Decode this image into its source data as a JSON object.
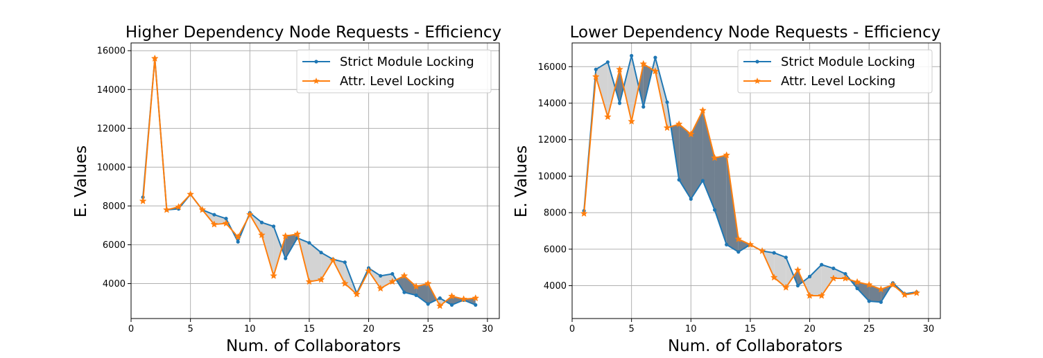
{
  "colors": {
    "series1": "#1f77b4",
    "series2": "#ff7f0e",
    "fill_series2_lower": "#d3d3d3",
    "fill_series2_higher": "#708090",
    "grid": "#b0b0b0"
  },
  "chart_data": [
    {
      "type": "line",
      "title": "Higher Dependency Node Requests - Efficiency",
      "xlabel": "Num. of Collaborators",
      "ylabel": "E. Values",
      "xlim": [
        0,
        31
      ],
      "ylim": [
        2200,
        16400
      ],
      "xticks": [
        0,
        5,
        10,
        15,
        20,
        25,
        30
      ],
      "yticks": [
        4000,
        6000,
        8000,
        10000,
        12000,
        14000,
        16000
      ],
      "grid": true,
      "legend_position": "top-right",
      "x": [
        1,
        2,
        3,
        4,
        5,
        6,
        7,
        8,
        9,
        10,
        11,
        12,
        13,
        14,
        15,
        16,
        17,
        18,
        19,
        20,
        21,
        22,
        23,
        24,
        25,
        26,
        27,
        28,
        29
      ],
      "series": [
        {
          "name": "Strict Module Locking",
          "marker": "dot",
          "values": [
            8450,
            15600,
            7800,
            7850,
            8600,
            7800,
            7550,
            7350,
            6150,
            7650,
            7150,
            6950,
            5300,
            6350,
            6100,
            5600,
            5250,
            5100,
            3500,
            4800,
            4400,
            4500,
            3550,
            3400,
            2950,
            3250,
            2900,
            3150,
            2900
          ]
        },
        {
          "name": "Attr. Level Locking",
          "marker": "star",
          "values": [
            8250,
            15600,
            7800,
            7950,
            8600,
            7800,
            7050,
            7100,
            6400,
            7550,
            6500,
            4400,
            6450,
            6550,
            4100,
            4200,
            5200,
            4000,
            3450,
            4650,
            3750,
            4100,
            4400,
            3850,
            4000,
            2850,
            3350,
            3200,
            3250
          ]
        }
      ]
    },
    {
      "type": "line",
      "title": "Lower Dependency Node Requests - Efficiency",
      "xlabel": "Num. of Collaborators",
      "ylabel": "E. Values",
      "xlim": [
        0,
        31
      ],
      "ylim": [
        2200,
        17300
      ],
      "xticks": [
        0,
        5,
        10,
        15,
        20,
        25,
        30
      ],
      "yticks": [
        4000,
        6000,
        8000,
        10000,
        12000,
        14000,
        16000
      ],
      "grid": true,
      "legend_position": "top-right",
      "x": [
        1,
        2,
        3,
        4,
        5,
        6,
        7,
        8,
        9,
        10,
        11,
        12,
        13,
        14,
        15,
        16,
        17,
        18,
        19,
        20,
        21,
        22,
        23,
        24,
        25,
        26,
        27,
        28,
        29
      ],
      "series": [
        {
          "name": "Strict Module Locking",
          "marker": "dot",
          "values": [
            8100,
            15850,
            16250,
            14000,
            16600,
            13800,
            16500,
            14050,
            9800,
            8750,
            9750,
            8150,
            6250,
            5850,
            6250,
            5900,
            5800,
            5550,
            4000,
            4500,
            5150,
            4950,
            4650,
            3850,
            3150,
            3100,
            4150,
            3550,
            3650
          ]
        },
        {
          "name": "Attr. Level Locking",
          "marker": "star",
          "values": [
            7950,
            15450,
            13250,
            15850,
            13000,
            16150,
            15750,
            12650,
            12850,
            12300,
            13600,
            11000,
            11150,
            6550,
            6250,
            5900,
            4450,
            3900,
            4850,
            3450,
            3450,
            4400,
            4400,
            4200,
            4050,
            3800,
            4050,
            3500,
            3600
          ]
        }
      ]
    }
  ]
}
